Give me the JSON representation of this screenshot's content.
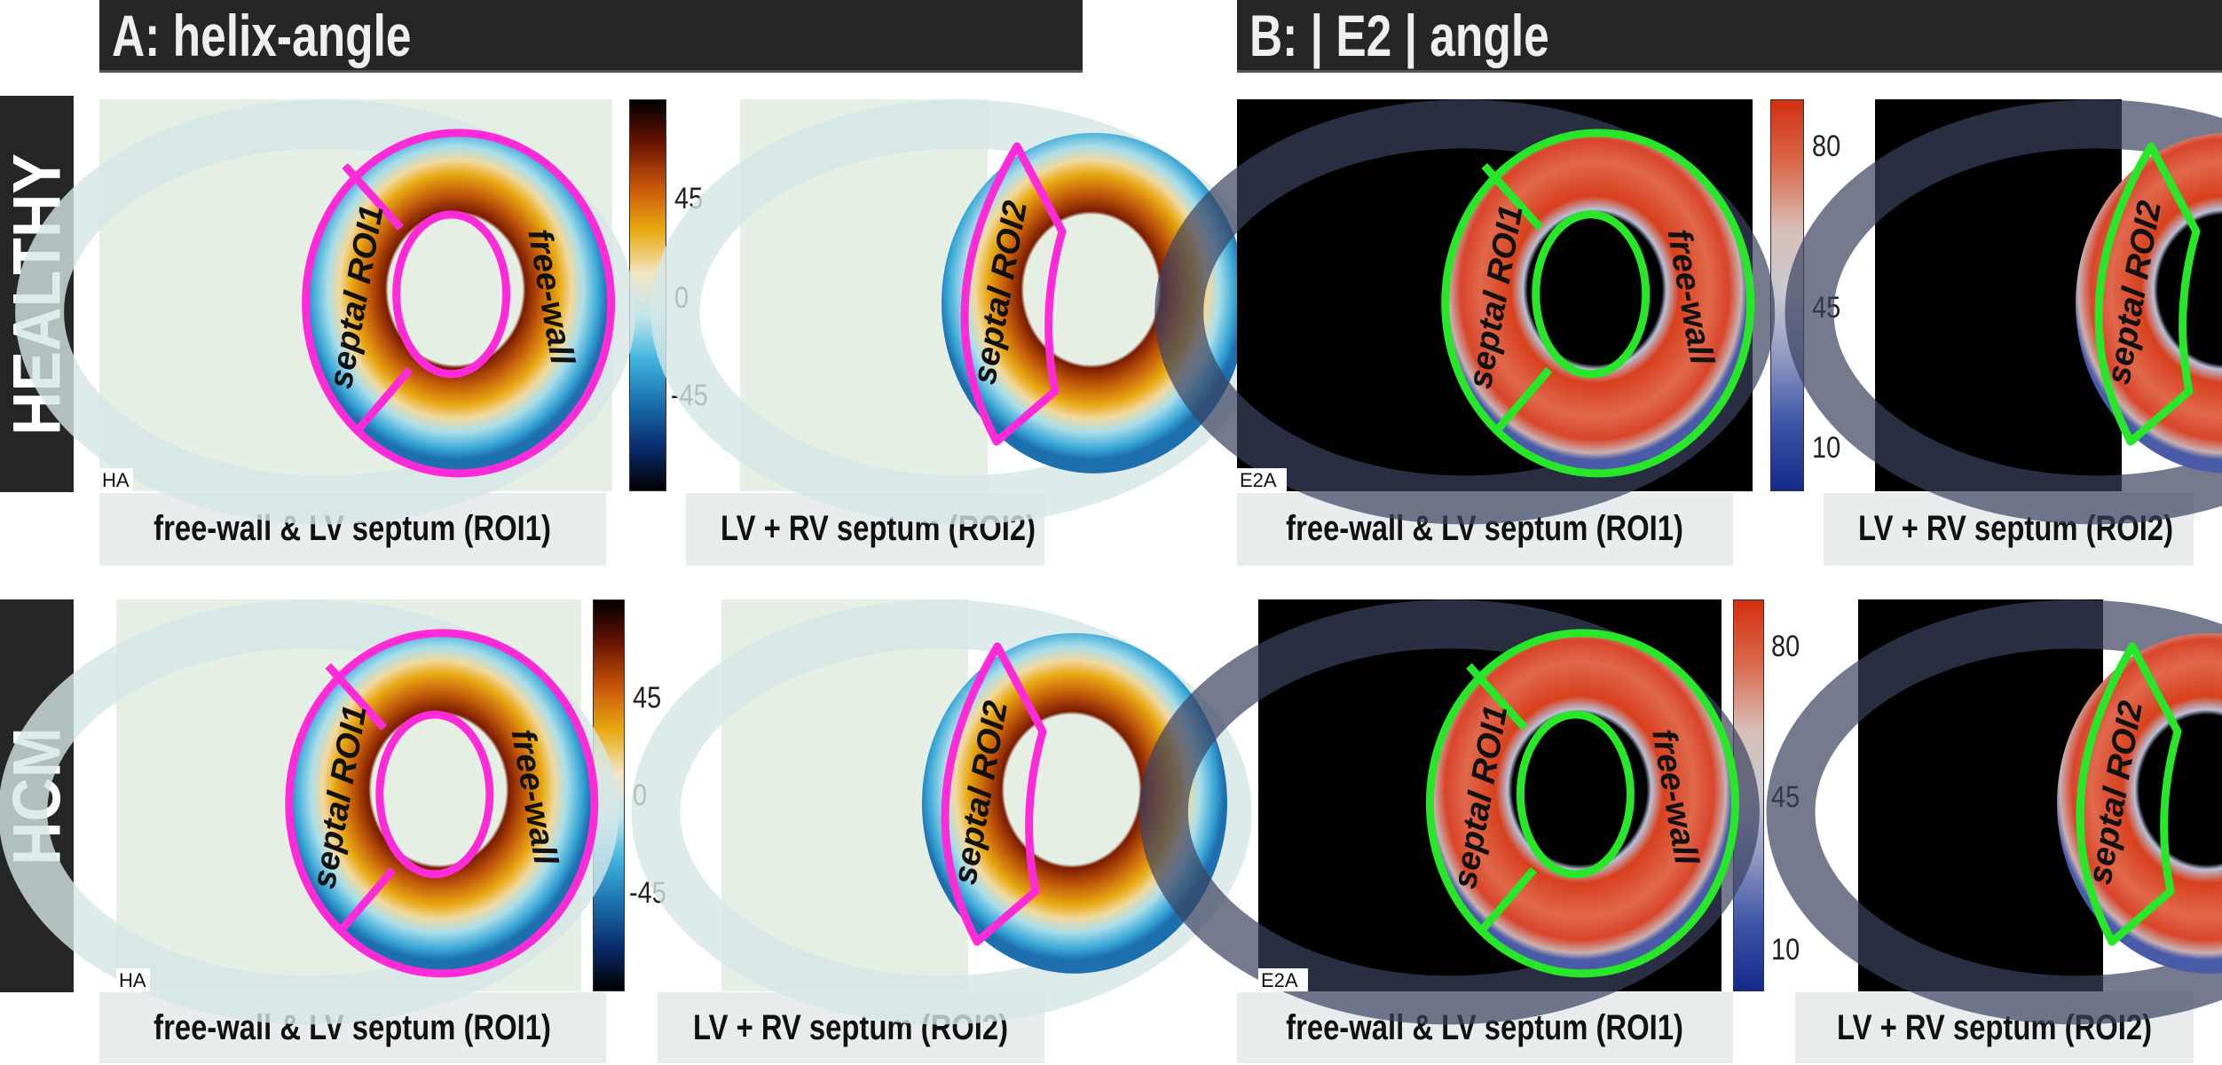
{
  "headers": {
    "a": "A: helix-angle",
    "b": "B: | E2 | angle"
  },
  "rows": [
    {
      "label": "HEALTHY"
    },
    {
      "label": "HCM"
    }
  ],
  "captions": {
    "roi1": "free-wall & LV septum (ROI1)",
    "roi2": "LV + RV septum (ROI2)"
  },
  "map_labels": {
    "ha": "HA",
    "e2a": "E2A"
  },
  "roi_labels": {
    "septal_roi1": "septal ROI1",
    "free_wall": "free-wall",
    "septal_roi2": "septal ROI2"
  },
  "colorbars": {
    "ha": {
      "ticks": [
        "45",
        "0",
        "-45"
      ],
      "stops": [
        "#000000",
        "#6b1403",
        "#c8560a",
        "#e9a90f",
        "#f2e6c4",
        "#bfe6ee",
        "#3fb2dc",
        "#1b6fae",
        "#0a2c6e",
        "#000000"
      ]
    },
    "e2a": {
      "ticks": [
        "80",
        "45",
        "10"
      ],
      "stops": [
        "#d32f10",
        "#da6a4e",
        "#d7bfb8",
        "#c9c9d0",
        "#8c96c0",
        "#3c53a6",
        "#142a8a"
      ]
    }
  },
  "colors": {
    "roi_ha": "#ff2bd8",
    "roi_e2a": "#28e628",
    "ha_background": "#e5efe3",
    "e2a_background": "#000000"
  }
}
